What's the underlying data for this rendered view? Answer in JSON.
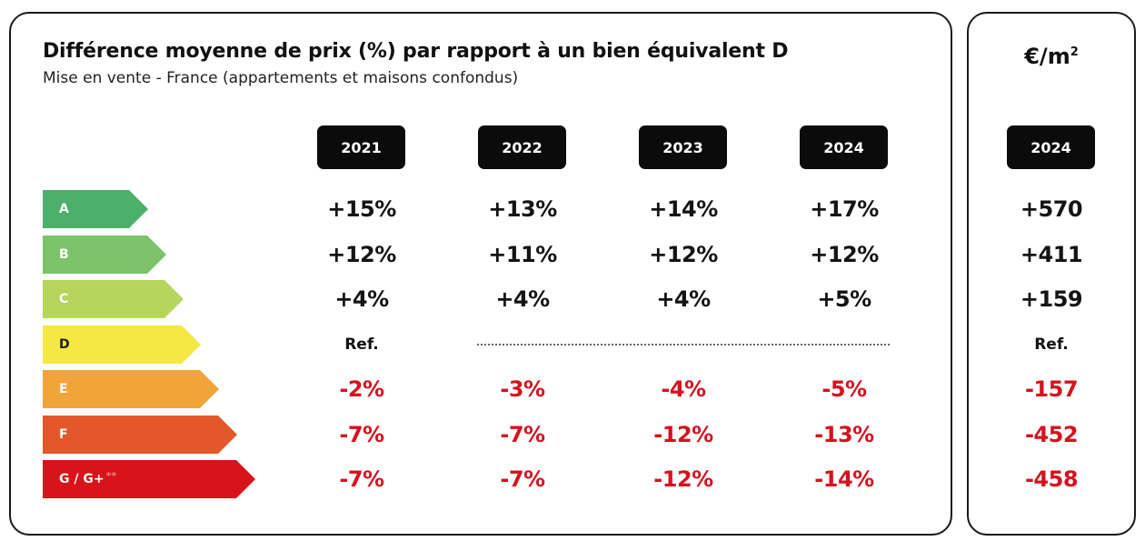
{
  "title": "Différence moyenne de prix (%) par rapport à un bien équivalent D",
  "subtitle": "Mise en vente - France (appartements et maisons confondus)",
  "side_panel": {
    "unit_base": "€/m",
    "unit_exp": "2",
    "year": "2024"
  },
  "years": [
    "2021",
    "2022",
    "2023",
    "2024"
  ],
  "ratings": [
    {
      "label": "A",
      "color": "#4caf6a",
      "values": [
        "+15%",
        "+13%",
        "+14%",
        "+17%"
      ],
      "eur_m2": "+570"
    },
    {
      "label": "B",
      "color": "#7cc36b",
      "values": [
        "+12%",
        "+11%",
        "+12%",
        "+12%"
      ],
      "eur_m2": "+411"
    },
    {
      "label": "C",
      "color": "#b5d65a",
      "values": [
        "+4%",
        "+4%",
        "+4%",
        "+5%"
      ],
      "eur_m2": "+159"
    },
    {
      "label": "D",
      "color": "#f3e844",
      "values": [
        "Ref.",
        "",
        "",
        ""
      ],
      "eur_m2": "Ref."
    },
    {
      "label": "E",
      "color": "#f0a43a",
      "values": [
        "-2%",
        "-3%",
        "-4%",
        "-5%"
      ],
      "eur_m2": "-157"
    },
    {
      "label": "F",
      "color": "#e4572a",
      "values": [
        "-7%",
        "-7%",
        "-12%",
        "-13%"
      ],
      "eur_m2": "-452"
    },
    {
      "label": "G / G+",
      "label_suffix": "**",
      "color": "#d7141a",
      "values": [
        "-7%",
        "-7%",
        "-12%",
        "-14%"
      ],
      "eur_m2": "-458"
    }
  ],
  "colors": {
    "positive_text": "#141414",
    "negative_text": "#d5121e",
    "pill_bg": "#0b0b0b"
  }
}
